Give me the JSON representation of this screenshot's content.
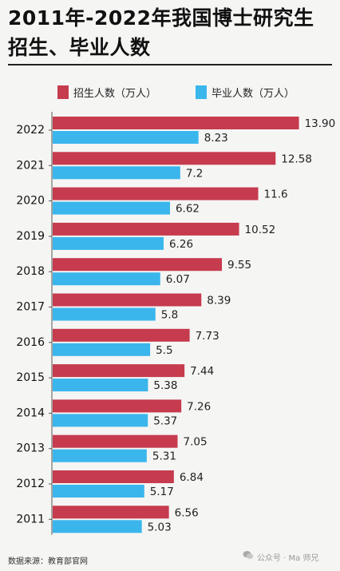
{
  "title": "2011年-2022年我国博士研究生招生、毕业人数",
  "legend": {
    "enroll": "招生人数（万人）",
    "graduate": "毕业人数（万人）"
  },
  "colors": {
    "enroll": "#c63b4e",
    "graduate": "#3ab6ec"
  },
  "source": "数据来源：教育部官网",
  "watermark": {
    "prefix": "公众号 · ",
    "name": "Ma 师兄",
    "icon": "wechat-icon"
  },
  "chart_data": {
    "type": "bar",
    "orientation": "horizontal",
    "categories": [
      "2022",
      "2021",
      "2020",
      "2019",
      "2018",
      "2017",
      "2016",
      "2015",
      "2014",
      "2013",
      "2012",
      "2011"
    ],
    "series": [
      {
        "name": "招生人数（万人）",
        "values": [
          13.9,
          12.58,
          11.6,
          10.52,
          9.55,
          8.39,
          7.73,
          7.44,
          7.26,
          7.05,
          6.84,
          6.56
        ],
        "labels": [
          "13.90",
          "12.58",
          "11.6",
          "10.52",
          "9.55",
          "8.39",
          "7.73",
          "7.44",
          "7.26",
          "7.05",
          "6.84",
          "6.56"
        ]
      },
      {
        "name": "毕业人数（万人）",
        "values": [
          8.23,
          7.2,
          6.62,
          6.26,
          6.07,
          5.8,
          5.5,
          5.38,
          5.37,
          5.31,
          5.17,
          5.03
        ],
        "labels": [
          "8.23",
          "7.2",
          "6.62",
          "6.26",
          "6.07",
          "5.8",
          "5.5",
          "5.38",
          "5.37",
          "5.31",
          "5.17",
          "5.03"
        ]
      }
    ],
    "xlim": [
      0,
      14
    ],
    "grid": false,
    "legend_position": "top"
  }
}
